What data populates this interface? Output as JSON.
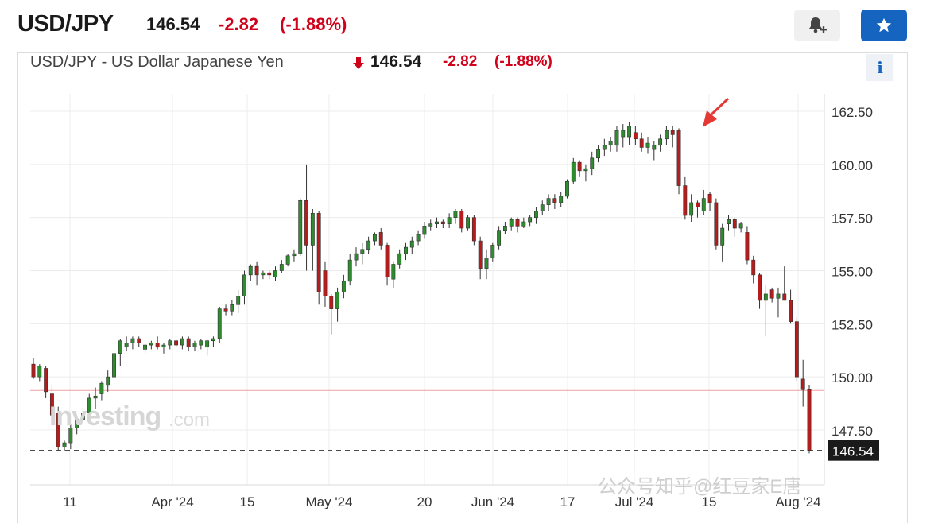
{
  "header": {
    "symbol": "USD/JPY",
    "price": "146.54",
    "change": "-2.82",
    "change_pct": "(-1.88%)"
  },
  "buttons": {
    "alert_icon": "bell-plus-icon",
    "watchlist_icon": "star-icon"
  },
  "chart_header": {
    "title": "USD/JPY - US Dollar Japanese Yen",
    "price": "146.54",
    "change": "-2.82",
    "change_pct": "(-1.88%)",
    "info_label": "i"
  },
  "watermark": {
    "brand": "Investing",
    "suffix": ".com",
    "social": "公众号知乎@红豆家E唐"
  },
  "colors": {
    "up": "#2e8b2e",
    "down": "#b71c1c",
    "accent": "#1565c0",
    "negative_text": "#d0021b"
  },
  "chart_data": {
    "type": "candlestick",
    "y_ticks": [
      "162.50",
      "160.00",
      "157.50",
      "155.00",
      "152.50",
      "150.00",
      "147.50"
    ],
    "ylim": [
      145.0,
      163.5
    ],
    "x_tick_labels": [
      "11",
      "Apr '24",
      "15",
      "May '24",
      "20",
      "Jun '24",
      "17",
      "Jul '24",
      "15",
      "Aug '24"
    ],
    "reference_line": 149.36,
    "last_price_label": "146.54",
    "last_price": 146.54,
    "candles": [
      [
        150.6,
        150.9,
        149.9,
        150.0
      ],
      [
        150.0,
        150.6,
        149.8,
        150.5
      ],
      [
        150.4,
        150.5,
        149.0,
        149.3
      ],
      [
        149.2,
        149.6,
        148.0,
        148.2
      ],
      [
        148.3,
        148.6,
        146.5,
        146.7
      ],
      [
        146.7,
        147.0,
        146.5,
        146.9
      ],
      [
        146.9,
        147.8,
        146.6,
        147.6
      ],
      [
        147.6,
        148.1,
        147.3,
        148.0
      ],
      [
        148.0,
        148.6,
        147.7,
        148.3
      ],
      [
        148.3,
        149.2,
        148.0,
        149.0
      ],
      [
        149.0,
        149.5,
        148.5,
        149.1
      ],
      [
        149.2,
        149.8,
        148.9,
        149.7
      ],
      [
        149.6,
        150.3,
        149.3,
        150.0
      ],
      [
        150.0,
        151.3,
        149.7,
        151.1
      ],
      [
        151.1,
        151.8,
        150.5,
        151.7
      ],
      [
        151.4,
        151.9,
        151.2,
        151.6
      ],
      [
        151.6,
        151.9,
        151.3,
        151.8
      ],
      [
        151.8,
        151.9,
        151.4,
        151.6
      ],
      [
        151.3,
        151.6,
        151.1,
        151.5
      ],
      [
        151.5,
        151.7,
        151.3,
        151.6
      ],
      [
        151.6,
        151.9,
        151.3,
        151.4
      ],
      [
        151.4,
        151.6,
        151.1,
        151.5
      ],
      [
        151.5,
        151.8,
        151.3,
        151.7
      ],
      [
        151.7,
        151.8,
        151.4,
        151.5
      ],
      [
        151.5,
        151.9,
        151.3,
        151.8
      ],
      [
        151.8,
        151.9,
        151.2,
        151.4
      ],
      [
        151.4,
        151.7,
        151.2,
        151.6
      ],
      [
        151.5,
        151.8,
        151.3,
        151.7
      ],
      [
        151.4,
        151.8,
        151.0,
        151.7
      ],
      [
        151.7,
        151.9,
        151.4,
        151.8
      ],
      [
        151.8,
        153.3,
        151.6,
        153.2
      ],
      [
        153.2,
        153.4,
        152.9,
        153.1
      ],
      [
        153.1,
        153.6,
        152.9,
        153.4
      ],
      [
        153.4,
        154.1,
        153.0,
        153.8
      ],
      [
        153.8,
        155.0,
        153.4,
        154.8
      ],
      [
        154.8,
        155.3,
        154.5,
        155.2
      ],
      [
        155.2,
        155.4,
        154.3,
        154.8
      ],
      [
        154.8,
        155.0,
        154.6,
        154.9
      ],
      [
        154.9,
        155.0,
        154.6,
        154.8
      ],
      [
        154.7,
        155.2,
        154.5,
        155.0
      ],
      [
        155.0,
        155.5,
        154.9,
        155.3
      ],
      [
        155.3,
        155.8,
        155.2,
        155.7
      ],
      [
        155.7,
        156.0,
        155.4,
        155.8
      ],
      [
        155.8,
        158.4,
        155.7,
        158.3
      ],
      [
        158.3,
        160.0,
        155.0,
        156.2
      ],
      [
        156.2,
        157.9,
        155.0,
        157.7
      ],
      [
        157.7,
        157.8,
        153.4,
        154.0
      ],
      [
        155.0,
        155.4,
        153.3,
        153.8
      ],
      [
        153.8,
        153.9,
        152.0,
        153.2
      ],
      [
        153.2,
        154.2,
        152.6,
        154.0
      ],
      [
        154.0,
        154.8,
        153.7,
        154.5
      ],
      [
        154.5,
        155.8,
        154.3,
        155.5
      ],
      [
        155.5,
        156.1,
        155.2,
        155.8
      ],
      [
        155.8,
        156.3,
        155.3,
        156.0
      ],
      [
        156.0,
        156.6,
        155.8,
        156.4
      ],
      [
        156.4,
        156.8,
        156.2,
        156.7
      ],
      [
        156.8,
        157.0,
        156.0,
        156.2
      ],
      [
        156.2,
        156.3,
        154.3,
        154.7
      ],
      [
        154.6,
        155.4,
        154.2,
        155.3
      ],
      [
        155.3,
        156.0,
        155.1,
        155.8
      ],
      [
        155.8,
        156.3,
        155.5,
        156.1
      ],
      [
        156.1,
        156.6,
        155.8,
        156.4
      ],
      [
        156.4,
        156.9,
        156.2,
        156.7
      ],
      [
        156.7,
        157.3,
        156.5,
        157.1
      ],
      [
        157.1,
        157.4,
        156.9,
        157.2
      ],
      [
        157.2,
        157.5,
        157.0,
        157.3
      ],
      [
        157.3,
        157.4,
        157.0,
        157.2
      ],
      [
        157.2,
        157.7,
        157.0,
        157.5
      ],
      [
        157.5,
        157.9,
        157.2,
        157.8
      ],
      [
        157.8,
        157.9,
        156.8,
        157.0
      ],
      [
        157.0,
        157.6,
        156.9,
        157.5
      ],
      [
        157.5,
        157.6,
        156.2,
        156.4
      ],
      [
        156.4,
        156.6,
        154.6,
        155.1
      ],
      [
        155.1,
        156.0,
        154.6,
        155.6
      ],
      [
        155.6,
        156.3,
        155.4,
        156.2
      ],
      [
        156.2,
        157.1,
        156.0,
        156.9
      ],
      [
        156.9,
        157.3,
        156.7,
        157.1
      ],
      [
        157.1,
        157.5,
        156.9,
        157.4
      ],
      [
        157.4,
        157.5,
        156.8,
        157.1
      ],
      [
        157.1,
        157.5,
        157.0,
        157.3
      ],
      [
        157.3,
        157.6,
        157.1,
        157.5
      ],
      [
        157.5,
        158.0,
        157.2,
        157.8
      ],
      [
        157.8,
        158.3,
        157.6,
        158.1
      ],
      [
        158.1,
        158.6,
        157.8,
        158.4
      ],
      [
        158.4,
        158.6,
        157.9,
        158.2
      ],
      [
        158.2,
        158.7,
        158.0,
        158.5
      ],
      [
        158.5,
        159.3,
        158.4,
        159.2
      ],
      [
        159.2,
        160.3,
        159.1,
        160.1
      ],
      [
        160.1,
        160.2,
        159.4,
        159.7
      ],
      [
        159.7,
        160.0,
        159.2,
        159.8
      ],
      [
        159.8,
        160.6,
        159.5,
        160.3
      ],
      [
        160.3,
        160.9,
        160.1,
        160.7
      ],
      [
        160.7,
        161.2,
        160.4,
        160.9
      ],
      [
        160.9,
        161.3,
        160.6,
        161.1
      ],
      [
        160.9,
        161.8,
        160.6,
        161.6
      ],
      [
        161.3,
        161.9,
        160.8,
        161.6
      ],
      [
        161.3,
        162.0,
        160.9,
        161.8
      ],
      [
        161.5,
        161.8,
        160.9,
        161.2
      ],
      [
        161.2,
        161.5,
        160.6,
        160.8
      ],
      [
        160.8,
        161.3,
        160.5,
        161.0
      ],
      [
        160.7,
        161.1,
        160.2,
        160.9
      ],
      [
        160.9,
        161.4,
        160.6,
        161.2
      ],
      [
        161.2,
        161.8,
        160.9,
        161.6
      ],
      [
        161.6,
        161.8,
        160.8,
        161.4
      ],
      [
        161.6,
        161.7,
        158.6,
        159.0
      ],
      [
        159.0,
        159.4,
        157.4,
        157.6
      ],
      [
        157.6,
        158.6,
        157.3,
        158.2
      ],
      [
        158.2,
        158.3,
        157.5,
        158.0
      ],
      [
        157.8,
        158.8,
        157.6,
        158.4
      ],
      [
        158.6,
        158.7,
        157.8,
        158.2
      ],
      [
        158.2,
        158.4,
        156.0,
        156.2
      ],
      [
        156.2,
        157.2,
        155.4,
        157.0
      ],
      [
        157.2,
        157.6,
        156.9,
        157.4
      ],
      [
        157.4,
        157.5,
        156.6,
        157.0
      ],
      [
        157.0,
        157.3,
        156.8,
        157.2
      ],
      [
        156.8,
        157.1,
        155.3,
        155.5
      ],
      [
        155.5,
        155.7,
        154.4,
        154.8
      ],
      [
        154.8,
        154.9,
        153.2,
        153.6
      ],
      [
        153.6,
        154.3,
        151.9,
        153.9
      ],
      [
        154.1,
        154.2,
        153.5,
        153.7
      ],
      [
        153.7,
        154.2,
        152.8,
        153.9
      ],
      [
        153.9,
        155.2,
        153.6,
        153.6
      ],
      [
        153.6,
        154.1,
        152.5,
        152.6
      ],
      [
        152.6,
        152.8,
        149.8,
        150.0
      ],
      [
        149.9,
        150.8,
        148.6,
        149.4
      ],
      [
        149.4,
        149.6,
        146.4,
        146.54
      ]
    ]
  }
}
